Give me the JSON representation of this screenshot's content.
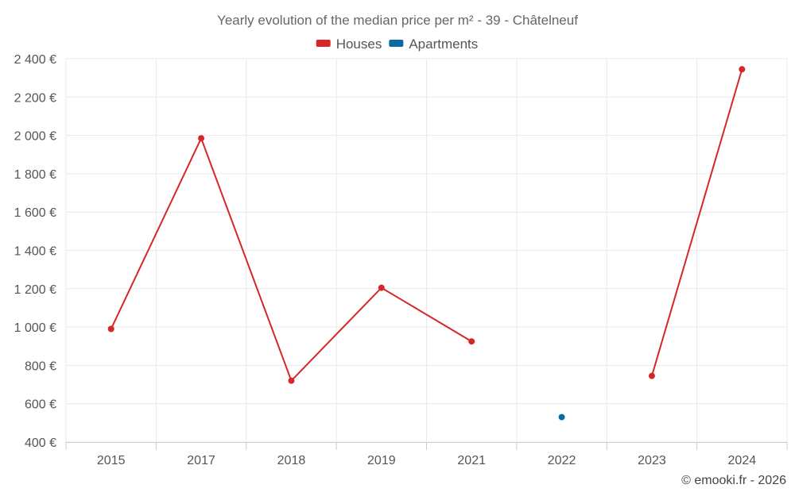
{
  "chart_data": {
    "type": "line",
    "title": "Yearly evolution of the median price per m² - 39 - Châtelneuf",
    "categories": [
      "2015",
      "2017",
      "2018",
      "2019",
      "2021",
      "2022",
      "2023",
      "2024"
    ],
    "y_tick_labels": [
      "400 €",
      "600 €",
      "800 €",
      "1 000 €",
      "1 200 €",
      "1 400 €",
      "1 600 €",
      "1 800 €",
      "2 000 €",
      "2 200 €",
      "2 400 €"
    ],
    "y_ticks": [
      400,
      600,
      800,
      1000,
      1200,
      1400,
      1600,
      1800,
      2000,
      2200,
      2400
    ],
    "ylim": [
      400,
      2400
    ],
    "grid": true,
    "legend_position": "top-center",
    "series": [
      {
        "name": "Houses",
        "color": "#d62728",
        "values": [
          990,
          1985,
          720,
          1205,
          925,
          null,
          745,
          2345
        ]
      },
      {
        "name": "Apartments",
        "color": "#0b6aa2",
        "values": [
          null,
          null,
          null,
          null,
          null,
          530,
          null,
          null
        ]
      }
    ]
  },
  "credit": "© emooki.fr - 2026"
}
